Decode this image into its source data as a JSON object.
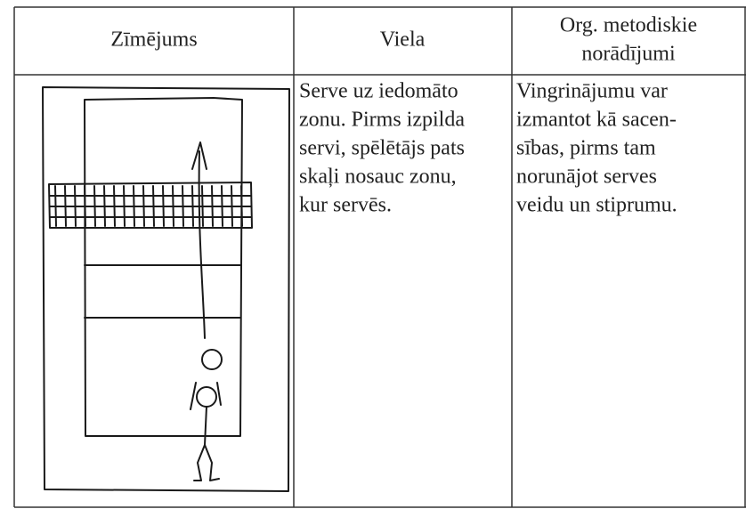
{
  "table": {
    "header": {
      "drawing": "Zīmējums",
      "material": "Viela",
      "notes": [
        "Org. metodiskie",
        "norādījumi"
      ]
    },
    "row": {
      "material": [
        "Serve uz iedomāto",
        "zonu. Pirms izpilda",
        "servi, spēlētājs pats",
        "skaļi nosauc zonu,",
        "kur servēs."
      ],
      "notes": [
        "Vingrinājumu var",
        "izmantot kā sacen-",
        "sības, pirms tam",
        "norunājot serves",
        "veidu un stiprumu."
      ]
    }
  }
}
